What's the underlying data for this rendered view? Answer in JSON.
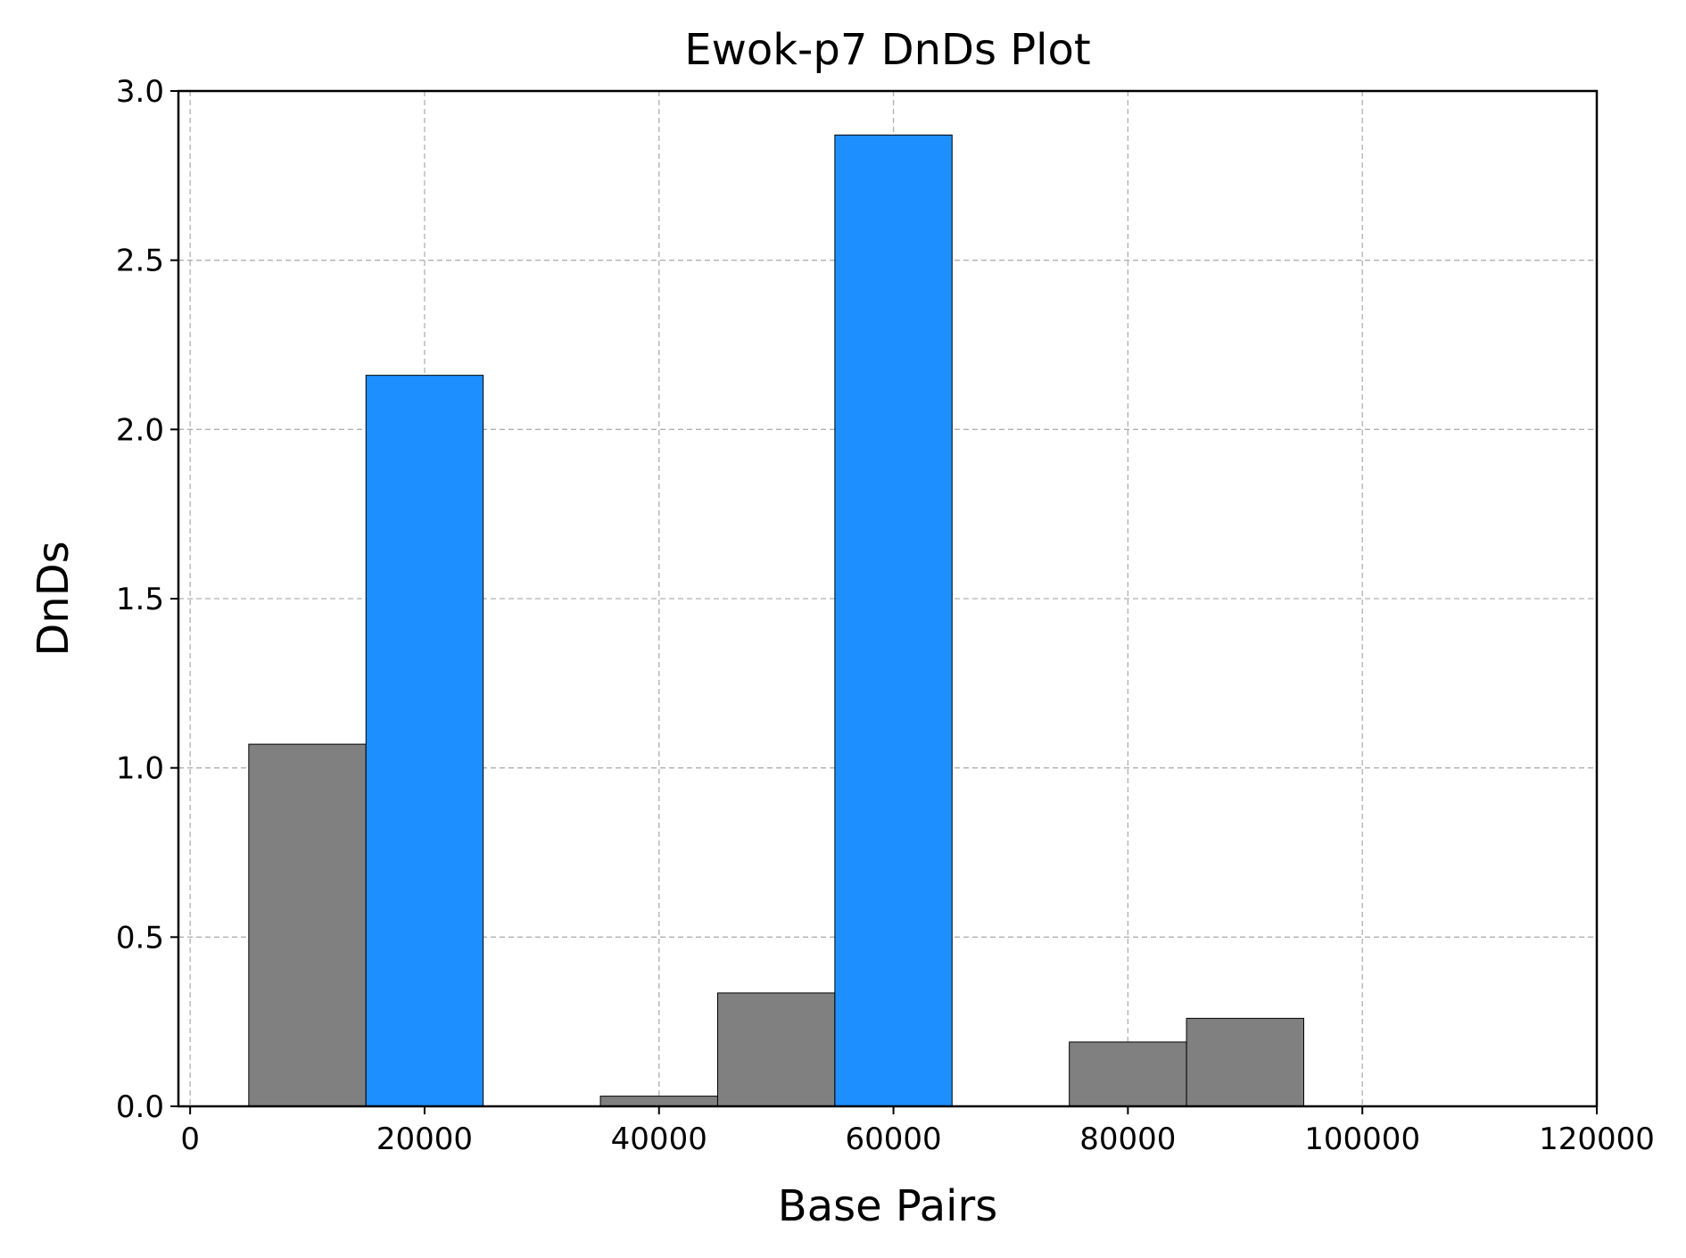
{
  "chart_data": {
    "type": "bar",
    "title": "Ewok-p7 DnDs Plot",
    "xlabel": "Base Pairs",
    "ylabel": "DnDs",
    "xlim": [
      -1000,
      120000
    ],
    "ylim": [
      0,
      3.0
    ],
    "xticks": [
      0,
      20000,
      40000,
      60000,
      80000,
      100000,
      120000
    ],
    "xtick_labels": [
      "0",
      "20000",
      "40000",
      "60000",
      "80000",
      "100000",
      "120000"
    ],
    "yticks": [
      0,
      0.5,
      1.0,
      1.5,
      2.0,
      2.5,
      3.0
    ],
    "ytick_labels": [
      "0.0",
      "0.5",
      "1.0",
      "1.5",
      "2.0",
      "2.5",
      "3.0"
    ],
    "grid": true,
    "bin_width": 10000,
    "bars": [
      {
        "x": 10000,
        "value": 1.07,
        "color": "#808080"
      },
      {
        "x": 20000,
        "value": 2.16,
        "color": "#1e8fff"
      },
      {
        "x": 40000,
        "value": 0.03,
        "color": "#808080"
      },
      {
        "x": 50000,
        "value": 0.335,
        "color": "#808080"
      },
      {
        "x": 60000,
        "value": 2.87,
        "color": "#1e8fff"
      },
      {
        "x": 80000,
        "value": 0.19,
        "color": "#808080"
      },
      {
        "x": 90000,
        "value": 0.26,
        "color": "#808080"
      }
    ],
    "colors": {
      "low": "#808080",
      "high": "#1e8fff"
    }
  }
}
